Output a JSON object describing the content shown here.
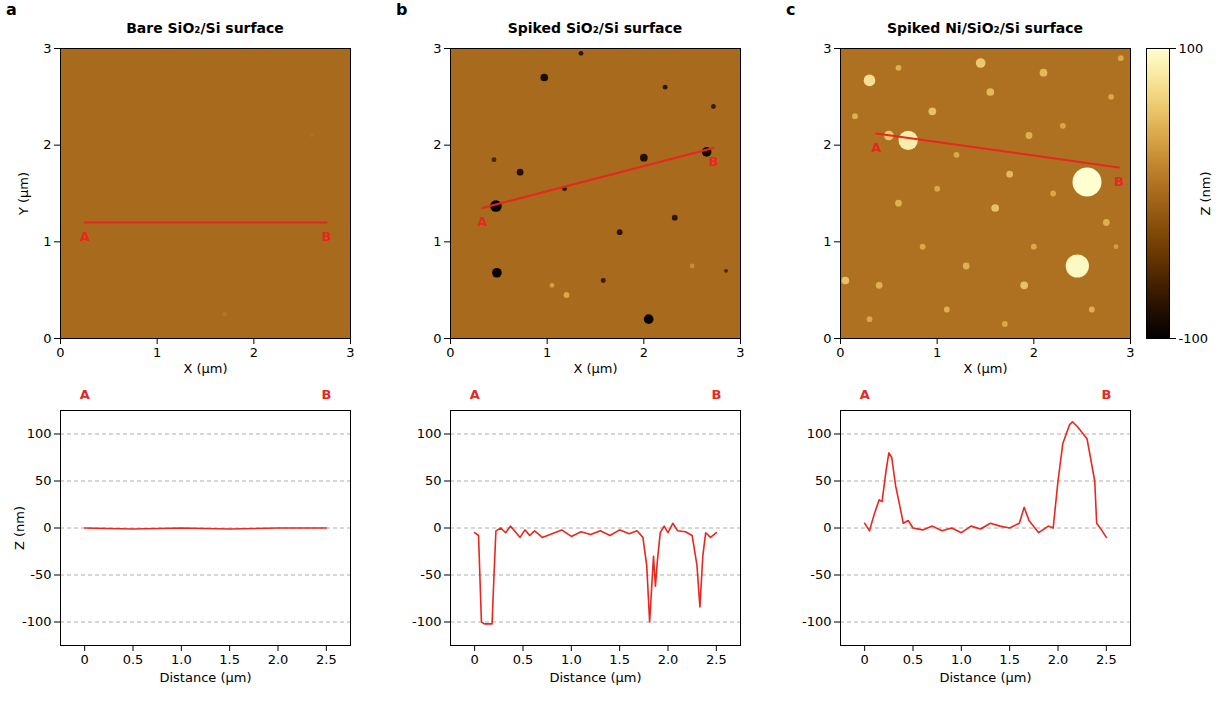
{
  "chart_data": [
    {
      "type": "heatmap",
      "panel": "a",
      "title": "Bare SiO₂/Si surface",
      "x_label": "X (μm)",
      "y_label": "Y (μm)",
      "xlim": [
        0,
        3
      ],
      "ylim": [
        0,
        3
      ],
      "xticks": [
        0,
        1,
        2,
        3
      ],
      "yticks": [
        0,
        1,
        2,
        3
      ],
      "background_z": 0,
      "features": [
        {
          "x": 1.7,
          "y": 0.25,
          "z": 8,
          "size": 0.05
        },
        {
          "x": 2.6,
          "y": 2.1,
          "z": 5,
          "size": 0.04
        }
      ],
      "line": {
        "color": "#e8271e",
        "x": [
          0.25,
          2.75
        ],
        "y": [
          1.2,
          1.2
        ],
        "labels": [
          "A",
          "B"
        ]
      }
    },
    {
      "type": "heatmap",
      "panel": "b",
      "title": "Spiked SiO₂/Si surface",
      "x_label": "X (μm)",
      "xlim": [
        0,
        3
      ],
      "ylim": [
        0,
        3
      ],
      "xticks": [
        0,
        1,
        2,
        3
      ],
      "yticks": [
        0,
        1,
        2,
        3
      ],
      "background_z": 0,
      "features": [
        {
          "x": 0.47,
          "y": 1.37,
          "z": -100,
          "size": 0.12
        },
        {
          "x": 0.48,
          "y": 0.68,
          "z": -95,
          "size": 0.1
        },
        {
          "x": 0.72,
          "y": 1.72,
          "z": -80,
          "size": 0.07
        },
        {
          "x": 0.97,
          "y": 2.7,
          "z": -85,
          "size": 0.08
        },
        {
          "x": 1.18,
          "y": 1.55,
          "z": -70,
          "size": 0.05
        },
        {
          "x": 1.35,
          "y": 2.95,
          "z": -75,
          "size": 0.05
        },
        {
          "x": 1.58,
          "y": 0.6,
          "z": -70,
          "size": 0.05
        },
        {
          "x": 1.75,
          "y": 1.1,
          "z": -75,
          "size": 0.06
        },
        {
          "x": 2.0,
          "y": 1.87,
          "z": -80,
          "size": 0.08
        },
        {
          "x": 2.05,
          "y": 0.2,
          "z": -95,
          "size": 0.1
        },
        {
          "x": 2.22,
          "y": 2.6,
          "z": -75,
          "size": 0.05
        },
        {
          "x": 2.32,
          "y": 1.25,
          "z": -75,
          "size": 0.06
        },
        {
          "x": 2.65,
          "y": 1.93,
          "z": -90,
          "size": 0.1
        },
        {
          "x": 2.72,
          "y": 2.4,
          "z": -70,
          "size": 0.05
        },
        {
          "x": 2.85,
          "y": 0.7,
          "z": -60,
          "size": 0.04
        },
        {
          "x": 0.45,
          "y": 1.85,
          "z": -60,
          "size": 0.05
        },
        {
          "x": 1.2,
          "y": 0.45,
          "z": 40,
          "size": 0.06
        },
        {
          "x": 1.05,
          "y": 0.55,
          "z": 35,
          "size": 0.05
        },
        {
          "x": 2.5,
          "y": 0.75,
          "z": 25,
          "size": 0.05
        }
      ],
      "line": {
        "color": "#e8271e",
        "x": [
          0.33,
          2.72
        ],
        "y": [
          1.35,
          1.97
        ],
        "labels": [
          "A",
          "B"
        ]
      }
    },
    {
      "type": "heatmap",
      "panel": "c",
      "title": "Spiked Ni/SiO₂/Si surface",
      "x_label": "X (μm)",
      "xlim": [
        0,
        3
      ],
      "ylim": [
        0,
        3
      ],
      "xticks": [
        0,
        1,
        2,
        3
      ],
      "yticks": [
        0,
        1,
        2,
        3
      ],
      "background_z": 5,
      "features": [
        {
          "x": 2.55,
          "y": 1.62,
          "z": 100,
          "size": 0.3
        },
        {
          "x": 2.45,
          "y": 0.75,
          "z": 95,
          "size": 0.24
        },
        {
          "x": 0.7,
          "y": 2.05,
          "z": 85,
          "size": 0.2
        },
        {
          "x": 0.3,
          "y": 2.67,
          "z": 75,
          "size": 0.12
        },
        {
          "x": 0.5,
          "y": 2.1,
          "z": 60,
          "size": 0.1
        },
        {
          "x": 1.45,
          "y": 2.85,
          "z": 60,
          "size": 0.1
        },
        {
          "x": 1.55,
          "y": 2.55,
          "z": 50,
          "size": 0.08
        },
        {
          "x": 0.95,
          "y": 2.35,
          "z": 55,
          "size": 0.08
        },
        {
          "x": 0.15,
          "y": 2.3,
          "z": 45,
          "size": 0.06
        },
        {
          "x": 0.6,
          "y": 1.4,
          "z": 45,
          "size": 0.07
        },
        {
          "x": 1.2,
          "y": 1.9,
          "z": 40,
          "size": 0.06
        },
        {
          "x": 1.6,
          "y": 1.35,
          "z": 55,
          "size": 0.08
        },
        {
          "x": 1.95,
          "y": 2.1,
          "z": 45,
          "size": 0.07
        },
        {
          "x": 2.1,
          "y": 2.75,
          "z": 50,
          "size": 0.08
        },
        {
          "x": 2.3,
          "y": 2.2,
          "z": 40,
          "size": 0.06
        },
        {
          "x": 2.8,
          "y": 2.5,
          "z": 40,
          "size": 0.06
        },
        {
          "x": 2.75,
          "y": 1.2,
          "z": 45,
          "size": 0.07
        },
        {
          "x": 2.0,
          "y": 0.95,
          "z": 40,
          "size": 0.06
        },
        {
          "x": 1.9,
          "y": 0.55,
          "z": 55,
          "size": 0.08
        },
        {
          "x": 1.3,
          "y": 0.75,
          "z": 45,
          "size": 0.07
        },
        {
          "x": 0.85,
          "y": 0.95,
          "z": 40,
          "size": 0.06
        },
        {
          "x": 0.4,
          "y": 0.55,
          "z": 45,
          "size": 0.07
        },
        {
          "x": 0.05,
          "y": 0.6,
          "z": 55,
          "size": 0.08
        },
        {
          "x": 0.3,
          "y": 0.2,
          "z": 40,
          "size": 0.06
        },
        {
          "x": 1.1,
          "y": 0.3,
          "z": 45,
          "size": 0.06
        },
        {
          "x": 1.7,
          "y": 0.15,
          "z": 40,
          "size": 0.06
        },
        {
          "x": 2.6,
          "y": 0.3,
          "z": 45,
          "size": 0.06
        },
        {
          "x": 2.9,
          "y": 2.9,
          "z": 40,
          "size": 0.06
        },
        {
          "x": 0.6,
          "y": 2.8,
          "z": 45,
          "size": 0.06
        },
        {
          "x": 1.0,
          "y": 1.55,
          "z": 40,
          "size": 0.06
        },
        {
          "x": 2.2,
          "y": 1.5,
          "z": 40,
          "size": 0.06
        },
        {
          "x": 1.75,
          "y": 1.7,
          "z": 50,
          "size": 0.07
        },
        {
          "x": 2.85,
          "y": 0.95,
          "z": 35,
          "size": 0.05
        }
      ],
      "line": {
        "color": "#e8271e",
        "x": [
          0.37,
          2.88
        ],
        "y": [
          2.12,
          1.77
        ],
        "labels": [
          "A",
          "B"
        ]
      }
    },
    {
      "type": "colorbar",
      "label": "Z (nm)",
      "range": [
        -100,
        100
      ],
      "ticks": [
        -100,
        100
      ]
    },
    {
      "type": "line",
      "x_label": "Distance (μm)",
      "y_label": "Z (nm)",
      "xlim": [
        -0.25,
        2.75
      ],
      "ylim": [
        -125,
        125
      ],
      "xticks": [
        0,
        0.5,
        {
          "value": 1,
          "label": "1.0"
        },
        1.5,
        {
          "value": 2,
          "label": "2.0"
        },
        2.5
      ],
      "yticks": [
        -100,
        -50,
        0,
        50,
        100
      ],
      "grid": true,
      "annotations": [
        {
          "text": "A",
          "x": 0
        },
        {
          "text": "B",
          "x": 2.5
        }
      ],
      "x": [
        0,
        0.5,
        1,
        1.5,
        2,
        2.5
      ],
      "series": [
        {
          "color": "#e8271e",
          "values": [
            0,
            -1,
            0,
            -1,
            0,
            0
          ]
        }
      ]
    },
    {
      "type": "line",
      "x_label": "Distance (μm)",
      "xlim": [
        -0.25,
        2.75
      ],
      "ylim": [
        -125,
        125
      ],
      "xticks": [
        0,
        0.5,
        {
          "value": 1,
          "label": "1.0"
        },
        1.5,
        {
          "value": 2,
          "label": "2.0"
        },
        2.5
      ],
      "yticks": [
        -100,
        -50,
        0,
        50,
        100
      ],
      "grid": true,
      "annotations": [
        {
          "text": "A",
          "x": 0
        },
        {
          "text": "B",
          "x": 2.5
        }
      ],
      "x": [
        0,
        0.04,
        0.07,
        0.1,
        0.18,
        0.2,
        0.22,
        0.27,
        0.32,
        0.37,
        0.42,
        0.47,
        0.52,
        0.57,
        0.62,
        0.7,
        0.8,
        0.9,
        1.0,
        1.1,
        1.2,
        1.3,
        1.4,
        1.5,
        1.6,
        1.68,
        1.74,
        1.78,
        1.81,
        1.83,
        1.85,
        1.87,
        1.89,
        1.92,
        1.96,
        2.0,
        2.05,
        2.1,
        2.18,
        2.25,
        2.3,
        2.33,
        2.36,
        2.39,
        2.44,
        2.5
      ],
      "series": [
        {
          "color": "#e8271e",
          "values": [
            -5,
            -8,
            -100,
            -102,
            -102,
            -50,
            -3,
            0,
            -5,
            2,
            -4,
            -10,
            -2,
            -8,
            -3,
            -10,
            -6,
            -2,
            -9,
            -4,
            -7,
            -3,
            -8,
            -2,
            -6,
            -3,
            -10,
            -40,
            -100,
            -65,
            -30,
            -62,
            -35,
            -5,
            2,
            -5,
            5,
            -3,
            -4,
            -8,
            -40,
            -84,
            -30,
            -5,
            -10,
            -5
          ]
        }
      ]
    },
    {
      "type": "line",
      "x_label": "Distance (μm)",
      "xlim": [
        -0.25,
        2.75
      ],
      "ylim": [
        -125,
        125
      ],
      "xticks": [
        0,
        0.5,
        {
          "value": 1,
          "label": "1.0"
        },
        1.5,
        {
          "value": 2,
          "label": "2.0"
        },
        2.5
      ],
      "yticks": [
        -100,
        -50,
        0,
        50,
        100
      ],
      "grid": true,
      "annotations": [
        {
          "text": "A",
          "x": 0
        },
        {
          "text": "B",
          "x": 2.5
        }
      ],
      "x": [
        0,
        0.05,
        0.1,
        0.15,
        0.18,
        0.22,
        0.25,
        0.28,
        0.32,
        0.37,
        0.4,
        0.45,
        0.5,
        0.6,
        0.7,
        0.8,
        0.9,
        1.0,
        1.1,
        1.2,
        1.3,
        1.4,
        1.5,
        1.6,
        1.65,
        1.7,
        1.8,
        1.9,
        1.95,
        2.0,
        2.05,
        2.12,
        2.15,
        2.2,
        2.3,
        2.38,
        2.4,
        2.45,
        2.5
      ],
      "series": [
        {
          "color": "#e8271e",
          "values": [
            5,
            -3,
            15,
            30,
            28,
            60,
            80,
            75,
            45,
            20,
            5,
            8,
            0,
            -2,
            2,
            -3,
            0,
            -5,
            2,
            -1,
            5,
            2,
            0,
            5,
            22,
            8,
            -5,
            2,
            0,
            50,
            90,
            110,
            113,
            108,
            95,
            50,
            5,
            -2,
            -10
          ]
        }
      ]
    }
  ]
}
